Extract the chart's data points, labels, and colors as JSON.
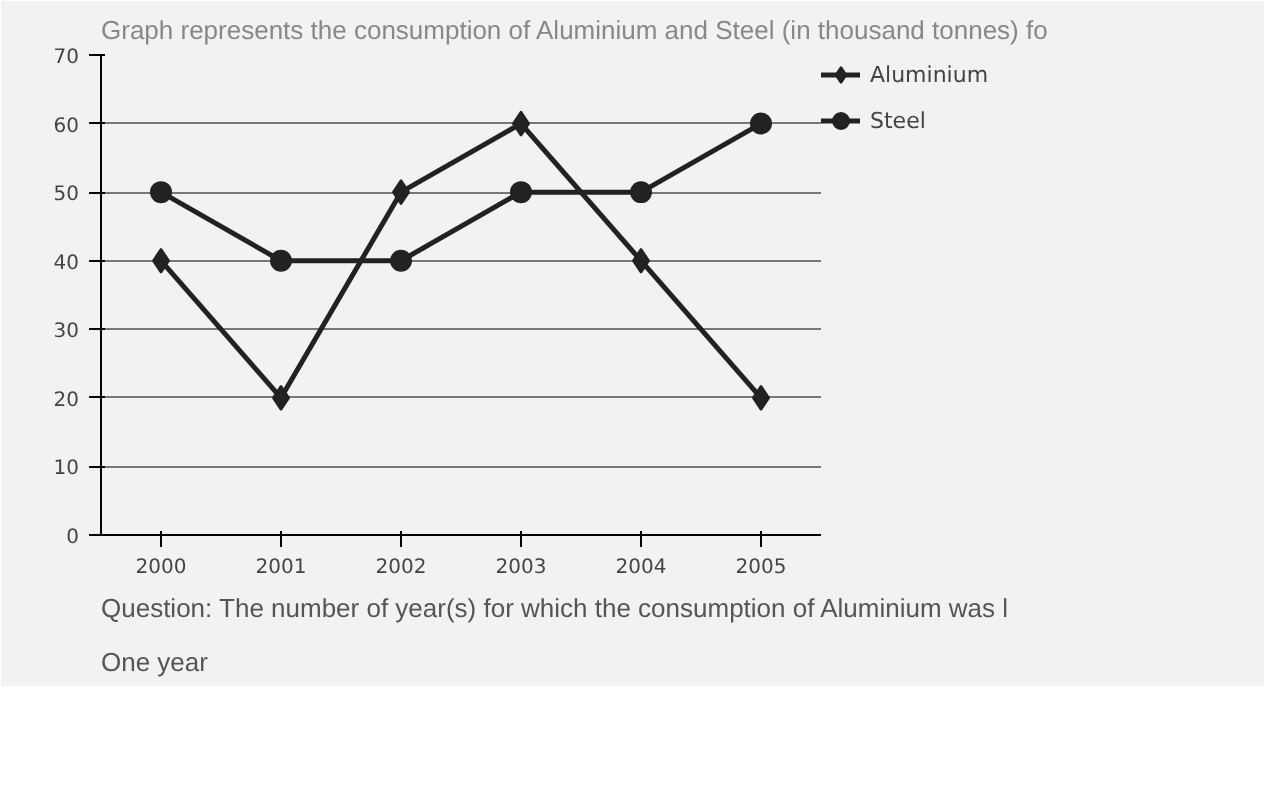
{
  "chart_data": {
    "type": "line",
    "title": "Graph represents the consumption of Aluminium and Steel (in thousand tonnes) fo",
    "annotations": [
      "Question: The number of year(s) for which the consumption of Aluminium was l",
      "One year"
    ],
    "categories": [
      "2000",
      "2001",
      "2002",
      "2003",
      "2004",
      "2005"
    ],
    "series": [
      {
        "name": "Aluminium",
        "color": "#222222",
        "marker": "diamond",
        "values": [
          40,
          20,
          50,
          60,
          40,
          20
        ]
      },
      {
        "name": "Steel",
        "color": "#222222",
        "marker": "circle",
        "values": [
          50,
          40,
          40,
          50,
          50,
          60
        ]
      }
    ],
    "ylim": [
      0,
      70
    ],
    "yticks": [
      0,
      10,
      20,
      30,
      40,
      50,
      60,
      70
    ],
    "grid": "y",
    "legend": "top right",
    "line_style": "solid"
  }
}
